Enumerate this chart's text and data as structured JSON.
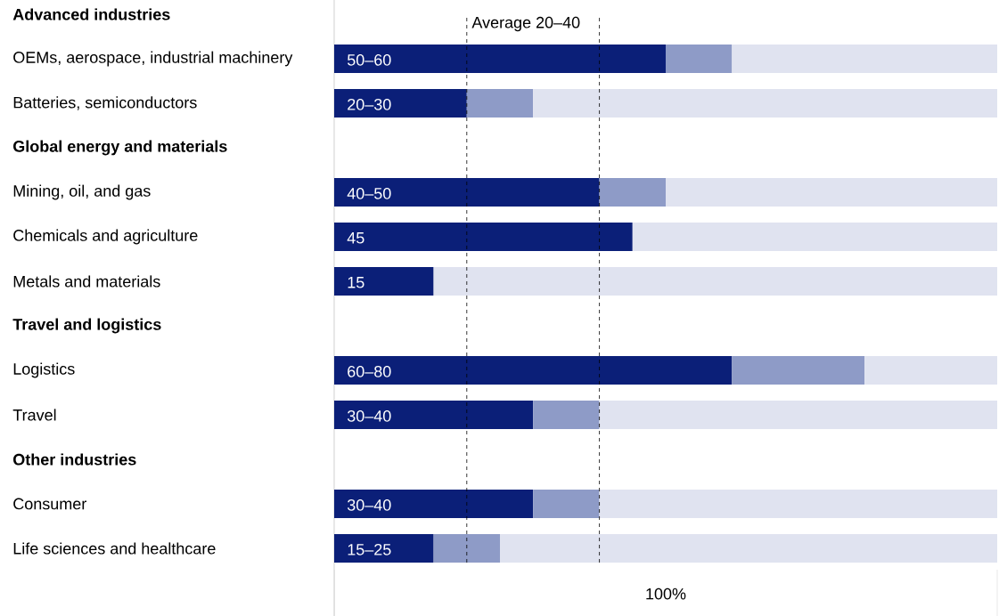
{
  "chart_data": {
    "type": "bar",
    "orientation": "horizontal",
    "stacked": true,
    "tick_labels": "y",
    "categories": [
      "Advanced industries",
      "OEMs, aerospace, industrial machinery",
      "Batteries, semiconductors",
      "Global energy and materials",
      "Mining, oil, and gas",
      "Chemicals and agriculture",
      "Metals and materials",
      "Travel and logistics",
      "Logistics",
      "Travel",
      "Other industries",
      "Consumer",
      "Life sciences and healthcare"
    ],
    "series": [
      {
        "color": "#0b1f78",
        "values": [
          null,
          50,
          20,
          null,
          40,
          45,
          15,
          null,
          60,
          30,
          null,
          30,
          15
        ],
        "value_labels": [
          null,
          "50–60",
          "20–30",
          null,
          "40–50",
          "45",
          "15",
          null,
          "60–80",
          "30–40",
          null,
          "30–40",
          "15–25"
        ]
      },
      {
        "color": "#8e9bc7",
        "values": [
          null,
          10,
          10,
          null,
          10,
          null,
          null,
          null,
          20,
          10,
          null,
          10,
          10
        ]
      },
      {
        "color": "#e0e3f0",
        "values": [
          null,
          40,
          70,
          null,
          50,
          55,
          85,
          null,
          20,
          60,
          null,
          60,
          75
        ]
      }
    ],
    "xlim": [
      0,
      100
    ],
    "xlabel": "100%",
    "ref_lines": [
      {
        "axis": "x",
        "value": 20,
        "label": "Average 20–40",
        "line_style": "dashed"
      },
      {
        "axis": "x",
        "value": 40,
        "line_style": "dashed"
      }
    ]
  }
}
